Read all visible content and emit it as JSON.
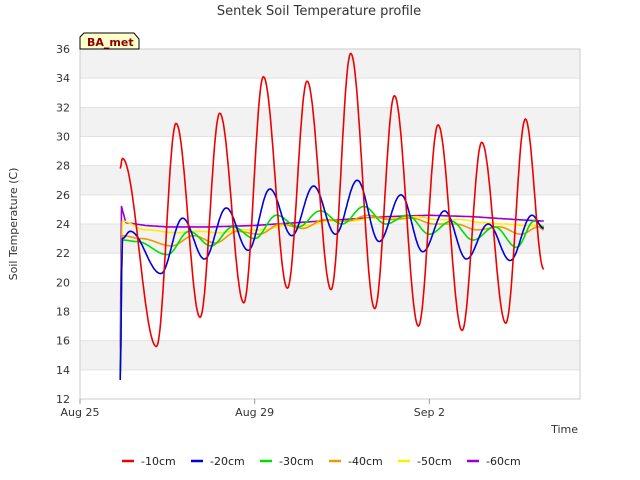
{
  "chart_data": {
    "type": "line",
    "title": "Sentek Soil Temperature profile",
    "xlabel": "Time",
    "ylabel": "Soil Temperature (C)",
    "ylim": [
      12,
      36
    ],
    "yticks": [
      12,
      14,
      16,
      18,
      20,
      22,
      24,
      26,
      28,
      30,
      32,
      34,
      36
    ],
    "xlim_days_label": [
      "Aug 25",
      "Sep 6"
    ],
    "xticks": [
      {
        "day": 0,
        "label": "Aug 25"
      },
      {
        "day": 4,
        "label": "Aug 29"
      },
      {
        "day": 8,
        "label": "Sep 2"
      }
    ],
    "badge": "BA_met",
    "grid": "horizontal-bands",
    "legend_position": "bottom",
    "series": [
      {
        "name": "-10cm",
        "color": "#ee0000",
        "kind": "daily",
        "mean": 24,
        "extrema": [
          [
            0.92,
            27.8
          ],
          [
            0.97,
            28.5
          ],
          [
            1.75,
            15.6
          ],
          [
            2.2,
            30.9
          ],
          [
            2.75,
            17.6
          ],
          [
            3.2,
            31.6
          ],
          [
            3.75,
            18.6
          ],
          [
            4.2,
            34.1
          ],
          [
            4.75,
            19.6
          ],
          [
            5.2,
            33.8
          ],
          [
            5.75,
            19.5
          ],
          [
            6.2,
            35.7
          ],
          [
            6.75,
            18.2
          ],
          [
            7.2,
            32.8
          ],
          [
            7.75,
            17.0
          ],
          [
            8.2,
            30.8
          ],
          [
            8.75,
            16.7
          ],
          [
            9.2,
            29.6
          ],
          [
            9.75,
            17.2
          ],
          [
            10.2,
            31.2
          ],
          [
            10.62,
            20.9
          ]
        ]
      },
      {
        "name": "-20cm",
        "color": "#0000dd",
        "kind": "daily",
        "extrema": [
          [
            0.92,
            13.3
          ],
          [
            0.97,
            23.0
          ],
          [
            1.15,
            23.5
          ],
          [
            1.85,
            20.6
          ],
          [
            2.35,
            24.4
          ],
          [
            2.85,
            21.6
          ],
          [
            3.35,
            25.1
          ],
          [
            3.85,
            22.2
          ],
          [
            4.35,
            26.4
          ],
          [
            4.85,
            23.2
          ],
          [
            5.35,
            26.6
          ],
          [
            5.85,
            23.3
          ],
          [
            6.35,
            27.0
          ],
          [
            6.85,
            22.8
          ],
          [
            7.35,
            26.0
          ],
          [
            7.85,
            22.1
          ],
          [
            8.35,
            24.9
          ],
          [
            8.85,
            21.6
          ],
          [
            9.35,
            24.0
          ],
          [
            9.85,
            21.5
          ],
          [
            10.35,
            24.6
          ],
          [
            10.62,
            23.7
          ]
        ]
      },
      {
        "name": "-30cm",
        "color": "#00dd00",
        "kind": "daily",
        "extrema": [
          [
            0.92,
            13.6
          ],
          [
            0.97,
            22.9
          ],
          [
            1.3,
            22.8
          ],
          [
            2.0,
            21.9
          ],
          [
            2.5,
            23.5
          ],
          [
            3.0,
            22.5
          ],
          [
            3.5,
            23.8
          ],
          [
            4.0,
            23.0
          ],
          [
            4.5,
            24.6
          ],
          [
            5.0,
            23.8
          ],
          [
            5.5,
            24.9
          ],
          [
            6.0,
            24.0
          ],
          [
            6.5,
            25.2
          ],
          [
            7.0,
            24.0
          ],
          [
            7.5,
            24.6
          ],
          [
            8.0,
            23.3
          ],
          [
            8.5,
            24.2
          ],
          [
            9.0,
            22.9
          ],
          [
            9.5,
            23.8
          ],
          [
            10.0,
            22.4
          ],
          [
            10.4,
            24.2
          ],
          [
            10.62,
            23.8
          ]
        ]
      },
      {
        "name": "-40cm",
        "color": "#ee9900",
        "kind": "daily",
        "extrema": [
          [
            0.92,
            13.5
          ],
          [
            0.97,
            23.2
          ],
          [
            1.4,
            23.0
          ],
          [
            2.1,
            22.5
          ],
          [
            2.6,
            23.2
          ],
          [
            3.1,
            22.7
          ],
          [
            3.6,
            23.5
          ],
          [
            4.1,
            23.3
          ],
          [
            4.6,
            24.0
          ],
          [
            5.1,
            23.7
          ],
          [
            5.6,
            24.3
          ],
          [
            6.1,
            24.2
          ],
          [
            6.6,
            24.6
          ],
          [
            7.1,
            24.3
          ],
          [
            7.6,
            24.4
          ],
          [
            8.1,
            24.0
          ],
          [
            8.6,
            24.0
          ],
          [
            9.1,
            23.6
          ],
          [
            9.6,
            23.8
          ],
          [
            10.1,
            23.3
          ],
          [
            10.5,
            23.8
          ],
          [
            10.62,
            23.6
          ]
        ]
      },
      {
        "name": "-50cm",
        "color": "#ffee00",
        "kind": "daily",
        "extrema": [
          [
            0.92,
            13.8
          ],
          [
            0.97,
            24.2
          ],
          [
            1.5,
            23.6
          ],
          [
            2.2,
            23.4
          ],
          [
            2.7,
            23.5
          ],
          [
            3.2,
            23.4
          ],
          [
            3.7,
            23.6
          ],
          [
            4.2,
            23.6
          ],
          [
            4.7,
            23.9
          ],
          [
            5.2,
            23.9
          ],
          [
            5.7,
            24.2
          ],
          [
            6.2,
            24.2
          ],
          [
            6.7,
            24.4
          ],
          [
            7.2,
            24.4
          ],
          [
            7.7,
            24.5
          ],
          [
            8.2,
            24.3
          ],
          [
            8.7,
            24.3
          ],
          [
            9.2,
            24.1
          ],
          [
            9.7,
            24.0
          ],
          [
            10.2,
            23.9
          ],
          [
            10.62,
            23.9
          ]
        ]
      },
      {
        "name": "-60cm",
        "color": "#9900cc",
        "kind": "smooth",
        "extrema": [
          [
            0.92,
            14.0
          ],
          [
            0.95,
            25.2
          ],
          [
            1.05,
            24.1
          ],
          [
            1.5,
            23.9
          ],
          [
            2.0,
            23.8
          ],
          [
            3.0,
            23.8
          ],
          [
            4.0,
            23.9
          ],
          [
            5.0,
            24.1
          ],
          [
            6.0,
            24.3
          ],
          [
            7.0,
            24.5
          ],
          [
            8.0,
            24.6
          ],
          [
            9.0,
            24.5
          ],
          [
            10.0,
            24.3
          ],
          [
            10.62,
            24.2
          ]
        ]
      }
    ]
  }
}
